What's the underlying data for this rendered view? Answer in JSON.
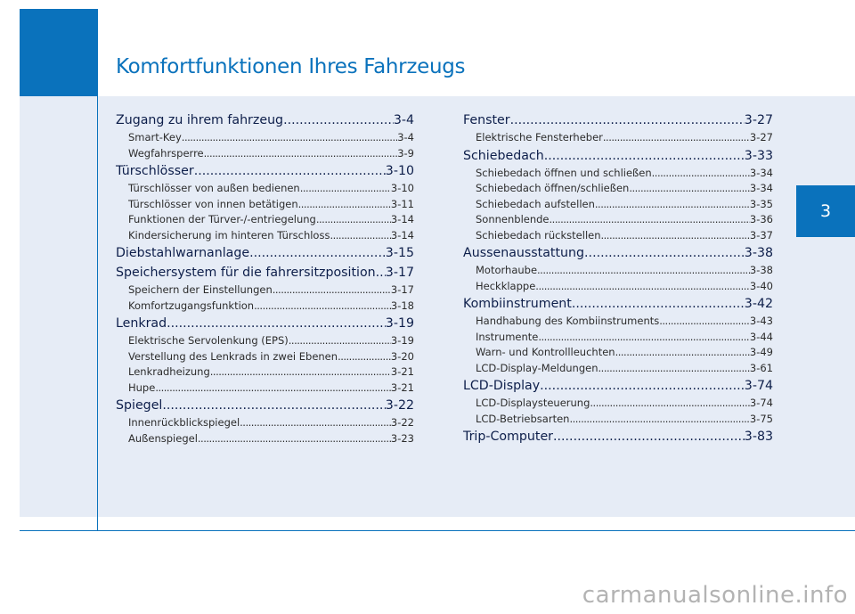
{
  "header": {
    "title": "Komfortfunktionen Ihres Fahrzeugs"
  },
  "chapter_tab": "3",
  "watermark": "carmanualsonline.info",
  "toc": {
    "left": [
      {
        "level": "main",
        "label": "Zugang zu ihrem fahrzeug",
        "page": "3-4"
      },
      {
        "level": "sub",
        "label": "Smart-Key",
        "page": "3-4"
      },
      {
        "level": "sub",
        "label": "Wegfahrsperre",
        "page": "3-9"
      },
      {
        "level": "main",
        "label": "Türschlösser",
        "page": "3-10"
      },
      {
        "level": "sub",
        "label": "Türschlösser von außen bedienen",
        "page": "3-10"
      },
      {
        "level": "sub",
        "label": "Türschlösser von innen betätigen",
        "page": "3-11"
      },
      {
        "level": "sub",
        "label": "Funktionen der Türver-/-entriegelung",
        "page": "3-14"
      },
      {
        "level": "sub",
        "label": "Kindersicherung im hinteren Türschloss",
        "page": "3-14"
      },
      {
        "level": "main",
        "label": "Diebstahlwarnanlage",
        "page": "3-15"
      },
      {
        "level": "main",
        "label": "Speichersystem für die fahrersitzposition",
        "page": "3-17"
      },
      {
        "level": "sub",
        "label": "Speichern der Einstellungen",
        "page": "3-17"
      },
      {
        "level": "sub",
        "label": "Komfortzugangsfunktion",
        "page": "3-18"
      },
      {
        "level": "main",
        "label": "Lenkrad",
        "page": "3-19"
      },
      {
        "level": "sub",
        "label": "Elektrische Servolenkung (EPS)",
        "page": "3-19"
      },
      {
        "level": "sub",
        "label": "Verstellung des Lenkrads in zwei Ebenen",
        "page": "3-20"
      },
      {
        "level": "sub",
        "label": "Lenkradheizung",
        "page": "3-21"
      },
      {
        "level": "sub",
        "label": "Hupe",
        "page": "3-21"
      },
      {
        "level": "main",
        "label": "Spiegel",
        "page": "3-22"
      },
      {
        "level": "sub",
        "label": "Innenrückblickspiegel",
        "page": "3-22"
      },
      {
        "level": "sub",
        "label": "Außenspiegel",
        "page": "3-23"
      }
    ],
    "right": [
      {
        "level": "main",
        "label": "Fenster",
        "page": "3-27"
      },
      {
        "level": "sub",
        "label": "Elektrische Fensterheber",
        "page": "3-27"
      },
      {
        "level": "main",
        "label": "Schiebedach",
        "page": "3-33"
      },
      {
        "level": "sub",
        "label": "Schiebedach öffnen und schließen",
        "page": "3-34"
      },
      {
        "level": "sub",
        "label": "Schiebedach öffnen/schließen",
        "page": "3-34"
      },
      {
        "level": "sub",
        "label": "Schiebedach aufstellen",
        "page": "3-35"
      },
      {
        "level": "sub",
        "label": "Sonnenblende",
        "page": "3-36"
      },
      {
        "level": "sub",
        "label": "Schiebedach rückstellen",
        "page": "3-37"
      },
      {
        "level": "main",
        "label": "Aussenausstattung",
        "page": "3-38"
      },
      {
        "level": "sub",
        "label": "Motorhaube",
        "page": "3-38"
      },
      {
        "level": "sub",
        "label": "Heckklappe",
        "page": "3-40"
      },
      {
        "level": "main",
        "label": "Kombiinstrument",
        "page": "3-42"
      },
      {
        "level": "sub",
        "label": "Handhabung des Kombiinstruments",
        "page": "3-43"
      },
      {
        "level": "sub",
        "label": "Instrumente",
        "page": "3-44"
      },
      {
        "level": "sub",
        "label": "Warn- und Kontrollleuchten",
        "page": "3-49"
      },
      {
        "level": "sub",
        "label": "LCD-Display-Meldungen",
        "page": "3-61"
      },
      {
        "level": "main",
        "label": "LCD-Display",
        "page": "3-74"
      },
      {
        "level": "sub",
        "label": "LCD-Displaysteuerung",
        "page": "3-74"
      },
      {
        "level": "sub",
        "label": "LCD-Betriebsarten",
        "page": "3-75"
      },
      {
        "level": "main",
        "label": "Trip-Computer",
        "page": "3-83"
      }
    ]
  },
  "colors": {
    "accent": "#0a72bc",
    "panel": "#e6ecf6",
    "heading_text": "#0d1e4a"
  }
}
